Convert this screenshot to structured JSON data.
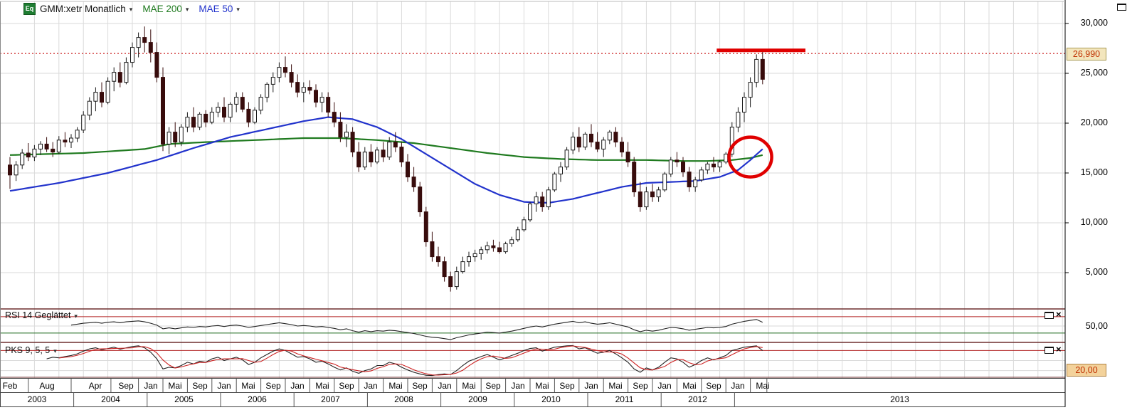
{
  "window": {
    "title_badge": "Eq",
    "symbol": "GMM:xetr Monatlich",
    "ma200_label": "MAE 200",
    "ma50_label": "MAE 50"
  },
  "icons": {
    "dropdown_glyph": "▾",
    "close_glyph": "×"
  },
  "colors": {
    "ma200": "#1f7a1f",
    "ma50": "#2233cc",
    "down_candle": "#380c0c",
    "up_candle": "#ffffff",
    "annotation_red": "#e00000",
    "dotted_line": "#cc2222",
    "level_red": "#b22222",
    "level_green": "#1f6b1f",
    "grid": "#dadada",
    "indicator_line": "#222222",
    "pks_signal": "#cc2222"
  },
  "price_axis": {
    "ticks": [
      {
        "label": "30,000",
        "value": 30000
      },
      {
        "label": "25,000",
        "value": 25000
      },
      {
        "label": "20,000",
        "value": 20000
      },
      {
        "label": "15,000",
        "value": 15000
      },
      {
        "label": "10,000",
        "value": 10000
      },
      {
        "label": "5,000",
        "value": 5000
      }
    ],
    "highlight": {
      "label": "26,990",
      "value": 26990
    }
  },
  "chart_data": {
    "type": "candlestick",
    "title": "GMM:xetr Monatlich",
    "interval": "monthly",
    "start_month": "2003-02",
    "end_month": "2013-05",
    "ylim": [
      0,
      31000
    ],
    "ohlc": [
      [
        15800,
        16600,
        13400,
        14800
      ],
      [
        14800,
        16200,
        14200,
        15800
      ],
      [
        15800,
        17400,
        15400,
        17000
      ],
      [
        17000,
        18000,
        16200,
        16600
      ],
      [
        16600,
        17800,
        16200,
        17400
      ],
      [
        17400,
        18200,
        16800,
        17900
      ],
      [
        17900,
        18600,
        17100,
        17400
      ],
      [
        17400,
        18100,
        16600,
        17100
      ],
      [
        17100,
        18700,
        16900,
        18300
      ],
      [
        18300,
        19100,
        17600,
        18100
      ],
      [
        18100,
        18900,
        17500,
        18500
      ],
      [
        18500,
        19600,
        18100,
        19300
      ],
      [
        19300,
        21200,
        19000,
        20800
      ],
      [
        20800,
        22600,
        20300,
        22200
      ],
      [
        22200,
        23600,
        21200,
        23100
      ],
      [
        23100,
        24100,
        21600,
        22100
      ],
      [
        22100,
        24600,
        21900,
        24200
      ],
      [
        24200,
        25600,
        23200,
        25100
      ],
      [
        25100,
        26100,
        23600,
        24100
      ],
      [
        24100,
        26600,
        23900,
        26100
      ],
      [
        26100,
        28100,
        25600,
        27600
      ],
      [
        27600,
        29100,
        26600,
        28600
      ],
      [
        28600,
        29700,
        27100,
        28100
      ],
      [
        28100,
        29400,
        26100,
        27100
      ],
      [
        27100,
        28100,
        24100,
        24600
      ],
      [
        24600,
        25600,
        17200,
        17900
      ],
      [
        17900,
        19600,
        16900,
        19100
      ],
      [
        19100,
        20100,
        17600,
        18100
      ],
      [
        18100,
        19900,
        17700,
        19600
      ],
      [
        19600,
        21100,
        19100,
        20600
      ],
      [
        20600,
        21600,
        19100,
        19600
      ],
      [
        19600,
        21100,
        19300,
        20900
      ],
      [
        20900,
        21300,
        19600,
        20100
      ],
      [
        20100,
        21600,
        19900,
        21100
      ],
      [
        21100,
        22100,
        20600,
        21600
      ],
      [
        21600,
        22600,
        20100,
        20600
      ],
      [
        20600,
        22100,
        20100,
        21900
      ],
      [
        21900,
        23100,
        21100,
        22600
      ],
      [
        22600,
        23100,
        21100,
        21400
      ],
      [
        21400,
        22100,
        19600,
        20100
      ],
      [
        20100,
        21600,
        19900,
        21300
      ],
      [
        21300,
        22900,
        20900,
        22600
      ],
      [
        22600,
        24100,
        22100,
        23900
      ],
      [
        23900,
        25100,
        23100,
        24600
      ],
      [
        24600,
        26100,
        24100,
        25600
      ],
      [
        25600,
        26700,
        24600,
        25100
      ],
      [
        25100,
        25900,
        23600,
        24100
      ],
      [
        24100,
        24900,
        22600,
        23100
      ],
      [
        23100,
        24100,
        22100,
        23600
      ],
      [
        23600,
        24300,
        22900,
        23300
      ],
      [
        23300,
        23900,
        21600,
        22100
      ],
      [
        22100,
        23100,
        21100,
        22600
      ],
      [
        22600,
        23100,
        20600,
        21100
      ],
      [
        21100,
        22100,
        19600,
        20100
      ],
      [
        20100,
        21100,
        18100,
        18600
      ],
      [
        18600,
        19900,
        17600,
        19100
      ],
      [
        19100,
        19600,
        16600,
        17100
      ],
      [
        17100,
        18100,
        15100,
        15600
      ],
      [
        15600,
        17600,
        15300,
        17100
      ],
      [
        17100,
        17900,
        15600,
        16100
      ],
      [
        16100,
        17600,
        15900,
        17300
      ],
      [
        17300,
        18100,
        16100,
        16600
      ],
      [
        16600,
        18600,
        16300,
        18100
      ],
      [
        18100,
        19100,
        17100,
        17600
      ],
      [
        17600,
        18100,
        15600,
        16100
      ],
      [
        16100,
        16900,
        14100,
        14600
      ],
      [
        14600,
        15600,
        13100,
        13600
      ],
      [
        13600,
        14100,
        10600,
        11100
      ],
      [
        11100,
        11600,
        7600,
        8100
      ],
      [
        8100,
        9100,
        6100,
        6600
      ],
      [
        6600,
        7600,
        5600,
        6100
      ],
      [
        6100,
        6600,
        4100,
        4600
      ],
      [
        4600,
        5100,
        3100,
        3600
      ],
      [
        3600,
        5600,
        3300,
        5100
      ],
      [
        5100,
        6600,
        4900,
        6100
      ],
      [
        6100,
        7100,
        5600,
        6600
      ],
      [
        6600,
        7300,
        6100,
        6900
      ],
      [
        6900,
        7600,
        6300,
        7300
      ],
      [
        7300,
        8100,
        6900,
        7700
      ],
      [
        7700,
        8300,
        7100,
        7500
      ],
      [
        7500,
        8100,
        6900,
        7100
      ],
      [
        7100,
        8100,
        6900,
        7900
      ],
      [
        7900,
        8600,
        7600,
        8300
      ],
      [
        8300,
        9600,
        8100,
        9300
      ],
      [
        9300,
        10600,
        9100,
        10300
      ],
      [
        10300,
        12100,
        10100,
        11900
      ],
      [
        11900,
        13100,
        11100,
        12600
      ],
      [
        12600,
        13100,
        11100,
        11600
      ],
      [
        11600,
        13600,
        11300,
        13300
      ],
      [
        13300,
        15100,
        13100,
        14900
      ],
      [
        14900,
        16100,
        14100,
        15600
      ],
      [
        15600,
        17600,
        15300,
        17300
      ],
      [
        17300,
        19100,
        16900,
        18600
      ],
      [
        18600,
        19600,
        17100,
        17600
      ],
      [
        17600,
        19100,
        17300,
        18900
      ],
      [
        18900,
        19900,
        17600,
        18100
      ],
      [
        18100,
        19100,
        17100,
        17400
      ],
      [
        17400,
        18600,
        16600,
        18300
      ],
      [
        18300,
        19300,
        17900,
        19100
      ],
      [
        19100,
        19600,
        17600,
        18100
      ],
      [
        18100,
        18600,
        16600,
        17100
      ],
      [
        17100,
        18100,
        15600,
        16100
      ],
      [
        16100,
        16600,
        12600,
        13100
      ],
      [
        13100,
        14100,
        11100,
        11600
      ],
      [
        11600,
        13600,
        11300,
        13100
      ],
      [
        13100,
        13900,
        12100,
        12600
      ],
      [
        12600,
        13600,
        12100,
        13300
      ],
      [
        13300,
        15100,
        13100,
        14900
      ],
      [
        14900,
        16600,
        14600,
        16300
      ],
      [
        16300,
        17100,
        15600,
        16100
      ],
      [
        16100,
        16600,
        14600,
        15100
      ],
      [
        15100,
        15600,
        13100,
        13600
      ],
      [
        13600,
        14600,
        13100,
        14300
      ],
      [
        14300,
        15600,
        14100,
        15300
      ],
      [
        15300,
        16100,
        14900,
        15900
      ],
      [
        15900,
        16600,
        15100,
        15600
      ],
      [
        15600,
        16300,
        15100,
        16100
      ],
      [
        16100,
        17100,
        15900,
        16900
      ],
      [
        16900,
        20100,
        16600,
        19600
      ],
      [
        19600,
        21600,
        19100,
        21100
      ],
      [
        21100,
        23100,
        20100,
        22600
      ],
      [
        22600,
        24600,
        21600,
        24100
      ],
      [
        24100,
        26900,
        23600,
        26400
      ],
      [
        26400,
        27200,
        23900,
        24400
      ]
    ],
    "series": [
      {
        "name": "MAE 200",
        "color": "#1f7a1f",
        "points": [
          [
            0,
            16800
          ],
          [
            12,
            17000
          ],
          [
            22,
            17400
          ],
          [
            26,
            17900
          ],
          [
            32,
            18100
          ],
          [
            40,
            18300
          ],
          [
            48,
            18500
          ],
          [
            54,
            18500
          ],
          [
            60,
            18300
          ],
          [
            66,
            18000
          ],
          [
            72,
            17500
          ],
          [
            78,
            17000
          ],
          [
            84,
            16600
          ],
          [
            90,
            16400
          ],
          [
            96,
            16300
          ],
          [
            104,
            16300
          ],
          [
            110,
            16200
          ],
          [
            114,
            16200
          ],
          [
            118,
            16300
          ],
          [
            121,
            16500
          ],
          [
            123,
            16800
          ]
        ]
      },
      {
        "name": "MAE 50",
        "color": "#2233cc",
        "points": [
          [
            0,
            13200
          ],
          [
            8,
            14000
          ],
          [
            16,
            15000
          ],
          [
            24,
            16300
          ],
          [
            30,
            17500
          ],
          [
            36,
            18600
          ],
          [
            42,
            19400
          ],
          [
            48,
            20200
          ],
          [
            52,
            20600
          ],
          [
            56,
            20400
          ],
          [
            60,
            19600
          ],
          [
            64,
            18400
          ],
          [
            68,
            16900
          ],
          [
            72,
            15400
          ],
          [
            76,
            13900
          ],
          [
            80,
            12800
          ],
          [
            84,
            12100
          ],
          [
            88,
            12000
          ],
          [
            92,
            12400
          ],
          [
            96,
            13000
          ],
          [
            100,
            13600
          ],
          [
            104,
            14000
          ],
          [
            108,
            14100
          ],
          [
            112,
            14200
          ],
          [
            116,
            14600
          ],
          [
            119,
            15300
          ],
          [
            121,
            16300
          ],
          [
            123,
            17400
          ]
        ]
      }
    ],
    "annotations": {
      "dotted_price_line": 26990,
      "resistance_segment": {
        "from_month_index": 115.5,
        "to_month_index": 130,
        "price": 27300
      },
      "circle": {
        "month_index": 121,
        "price": 16600
      }
    }
  },
  "rsi_panel": {
    "title": "RSI 14 Geglättet",
    "axis_label": "50,00",
    "start_month_index": 10,
    "scale": [
      15,
      85
    ],
    "upper_level": 70,
    "lower_level": 35,
    "values": [
      52,
      54,
      56,
      57,
      58,
      56,
      58,
      59,
      57,
      59,
      60,
      61,
      59,
      56,
      52,
      44,
      46,
      44,
      46,
      48,
      47,
      49,
      48,
      50,
      51,
      49,
      51,
      52,
      50,
      47,
      49,
      51,
      53,
      55,
      57,
      55,
      53,
      50,
      51,
      50,
      48,
      49,
      47,
      45,
      42,
      44,
      40,
      37,
      40,
      38,
      40,
      39,
      41,
      40,
      38,
      36,
      34,
      31,
      28,
      26,
      25,
      23,
      21,
      25,
      28,
      31,
      33,
      35,
      37,
      36,
      35,
      37,
      39,
      42,
      45,
      48,
      50,
      48,
      51,
      54,
      56,
      58,
      60,
      57,
      59,
      56,
      54,
      55,
      57,
      54,
      51,
      48,
      42,
      38,
      41,
      39,
      41,
      44,
      47,
      46,
      44,
      41,
      43,
      45,
      47,
      46,
      47,
      49,
      54,
      57,
      60,
      62,
      64,
      58
    ]
  },
  "pks_panel": {
    "title": "PKS 9, 5, 5",
    "highlight_label": "20,00",
    "start_month_index": 6,
    "scale": [
      0,
      100
    ],
    "upper_level": 80,
    "lower_level": 20,
    "values": [
      55,
      60,
      58,
      62,
      65,
      70,
      78,
      85,
      88,
      82,
      86,
      90,
      84,
      88,
      92,
      94,
      88,
      75,
      55,
      25,
      30,
      28,
      35,
      45,
      40,
      48,
      45,
      55,
      60,
      50,
      55,
      60,
      52,
      38,
      45,
      58,
      68,
      78,
      85,
      80,
      70,
      60,
      62,
      55,
      45,
      48,
      40,
      30,
      22,
      28,
      18,
      12,
      20,
      25,
      35,
      35,
      45,
      40,
      30,
      22,
      15,
      10,
      6,
      5,
      8,
      10,
      8,
      20,
      35,
      48,
      55,
      62,
      68,
      60,
      52,
      58,
      65,
      72,
      80,
      86,
      88,
      78,
      84,
      90,
      92,
      94,
      95,
      85,
      88,
      80,
      72,
      75,
      80,
      70,
      58,
      45,
      25,
      15,
      28,
      22,
      30,
      45,
      58,
      55,
      45,
      30,
      38,
      50,
      58,
      52,
      58,
      65,
      80,
      85,
      90,
      92,
      94,
      80
    ]
  },
  "x_axis": {
    "month_ticks": [
      {
        "label": "Feb",
        "m": 0
      },
      {
        "label": "Aug",
        "m": 6
      },
      {
        "label": "Apr",
        "m": 14
      },
      {
        "label": "Sep",
        "m": 19
      },
      {
        "label": "Jan",
        "m": 23
      },
      {
        "label": "Mai",
        "m": 27
      },
      {
        "label": "Sep",
        "m": 31
      },
      {
        "label": "Jan",
        "m": 35
      },
      {
        "label": "Mai",
        "m": 39
      },
      {
        "label": "Sep",
        "m": 43
      },
      {
        "label": "Jan",
        "m": 47
      },
      {
        "label": "Mai",
        "m": 51
      },
      {
        "label": "Sep",
        "m": 55
      },
      {
        "label": "Jan",
        "m": 59
      },
      {
        "label": "Mai",
        "m": 63
      },
      {
        "label": "Sep",
        "m": 67
      },
      {
        "label": "Jan",
        "m": 71
      },
      {
        "label": "Mai",
        "m": 75
      },
      {
        "label": "Sep",
        "m": 79
      },
      {
        "label": "Jan",
        "m": 83
      },
      {
        "label": "Mai",
        "m": 87
      },
      {
        "label": "Sep",
        "m": 91
      },
      {
        "label": "Jan",
        "m": 95
      },
      {
        "label": "Mai",
        "m": 99
      },
      {
        "label": "Sep",
        "m": 103
      },
      {
        "label": "Jan",
        "m": 107
      },
      {
        "label": "Mai",
        "m": 111
      },
      {
        "label": "Sep",
        "m": 115
      },
      {
        "label": "Jan",
        "m": 119
      },
      {
        "label": "Mai",
        "m": 123
      }
    ],
    "years": [
      {
        "label": "2003",
        "start_m": 0
      },
      {
        "label": "2004",
        "start_m": 11
      },
      {
        "label": "2005",
        "start_m": 23
      },
      {
        "label": "2006",
        "start_m": 35
      },
      {
        "label": "2007",
        "start_m": 47
      },
      {
        "label": "2008",
        "start_m": 59
      },
      {
        "label": "2009",
        "start_m": 71
      },
      {
        "label": "2010",
        "start_m": 83
      },
      {
        "label": "2011",
        "start_m": 95
      },
      {
        "label": "2012",
        "start_m": 107
      },
      {
        "label": "2013",
        "start_m": 119
      }
    ]
  }
}
